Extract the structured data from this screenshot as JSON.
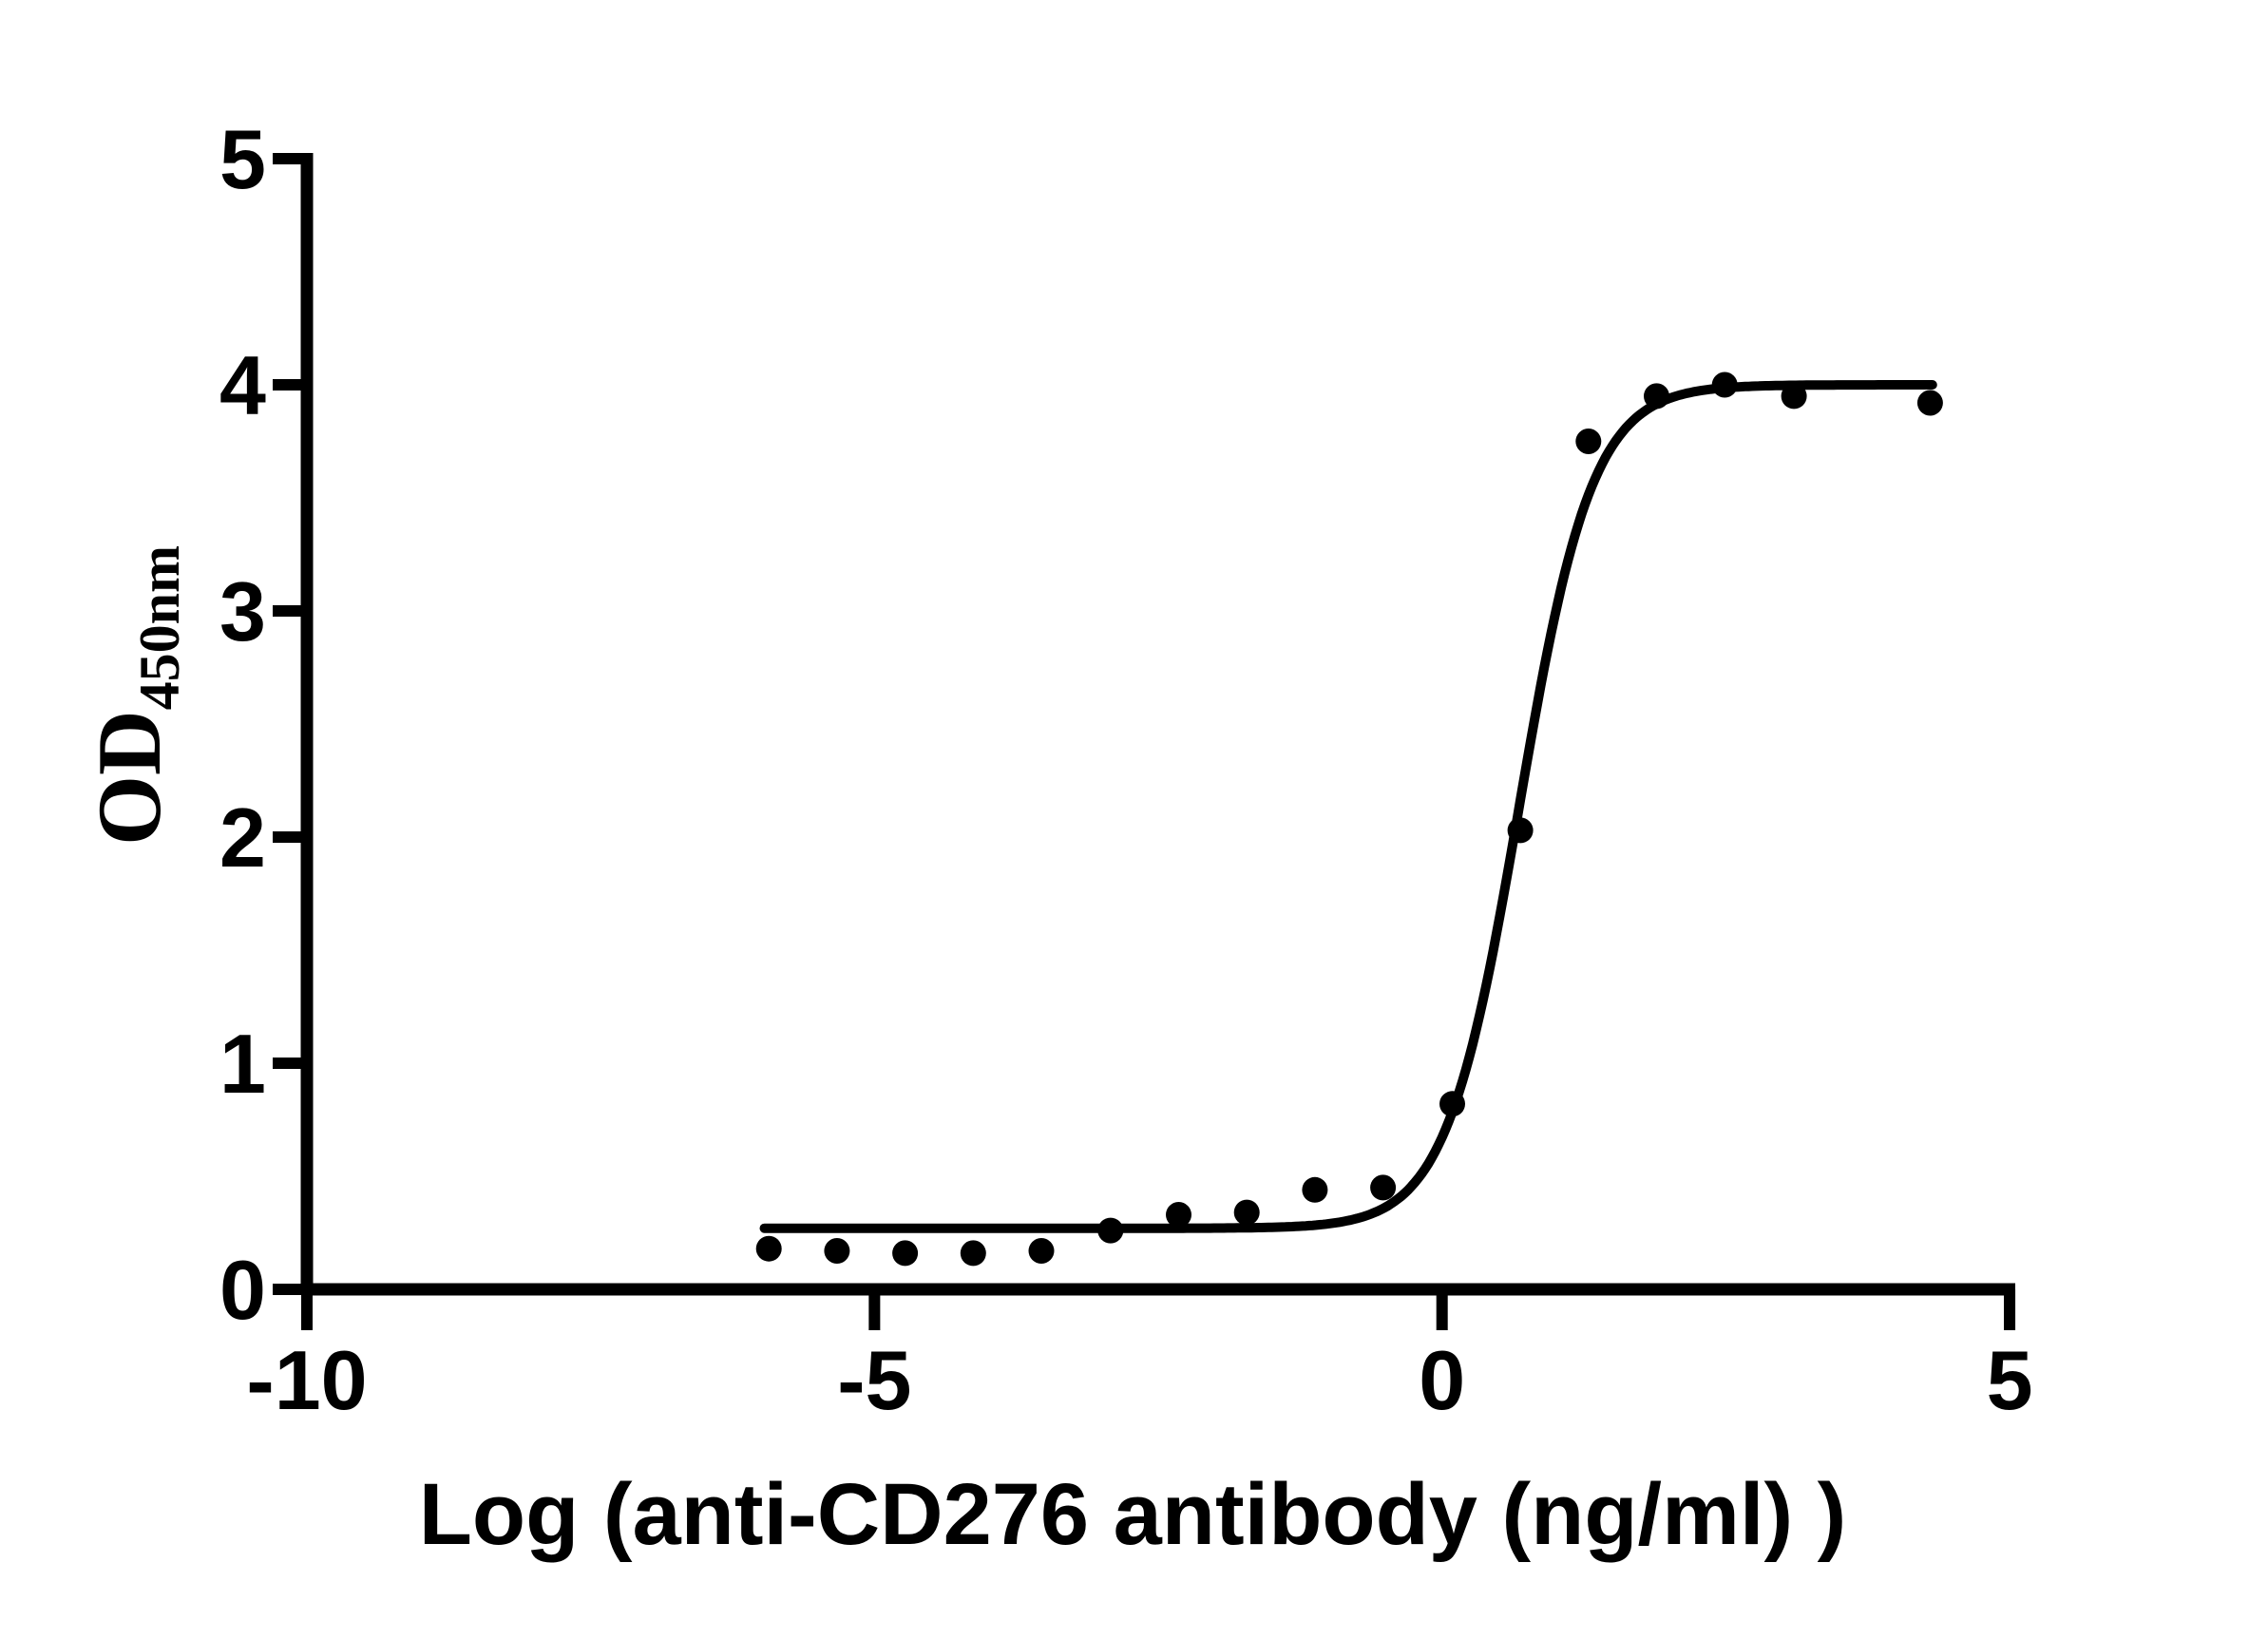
{
  "figure": {
    "background": "#ffffff",
    "foreground": "#000000"
  },
  "chart_data": {
    "type": "scatter",
    "title": "",
    "xlabel": "Log（anti-CD276 antibody（ng/ml））",
    "ylabel_main": "OD",
    "ylabel_sub": "450nm",
    "xlim": [
      -10,
      5
    ],
    "ylim": [
      0,
      5
    ],
    "x_ticks": [
      "-10",
      "-5",
      "0",
      "5"
    ],
    "x_tick_values": [
      -10,
      -5,
      0,
      5
    ],
    "y_ticks": [
      "0",
      "1",
      "2",
      "3",
      "4",
      "5"
    ],
    "y_tick_values": [
      0,
      1,
      2,
      3,
      4,
      5
    ],
    "grid": false,
    "legend_position": "none",
    "marker_color": "#000000",
    "curve_color": "#000000",
    "points": [
      {
        "x": -5.93,
        "y": 0.18
      },
      {
        "x": -5.33,
        "y": 0.17
      },
      {
        "x": -4.73,
        "y": 0.16
      },
      {
        "x": -4.13,
        "y": 0.16
      },
      {
        "x": -3.53,
        "y": 0.17
      },
      {
        "x": -2.92,
        "y": 0.26
      },
      {
        "x": -2.32,
        "y": 0.33
      },
      {
        "x": -1.72,
        "y": 0.34
      },
      {
        "x": -1.12,
        "y": 0.44
      },
      {
        "x": -0.52,
        "y": 0.45
      },
      {
        "x": 0.09,
        "y": 0.82
      },
      {
        "x": 0.69,
        "y": 2.03
      },
      {
        "x": 1.29,
        "y": 3.75
      },
      {
        "x": 1.89,
        "y": 3.95
      },
      {
        "x": 2.49,
        "y": 4.0
      },
      {
        "x": 3.1,
        "y": 3.95
      },
      {
        "x": 4.3,
        "y": 3.92
      }
    ],
    "fit_curve": {
      "model": "4PL",
      "bottom": 0.27,
      "top": 4.0,
      "log_ec50": 0.68,
      "hill": 1.35,
      "x_start": -5.97,
      "x_end": 4.32
    }
  }
}
